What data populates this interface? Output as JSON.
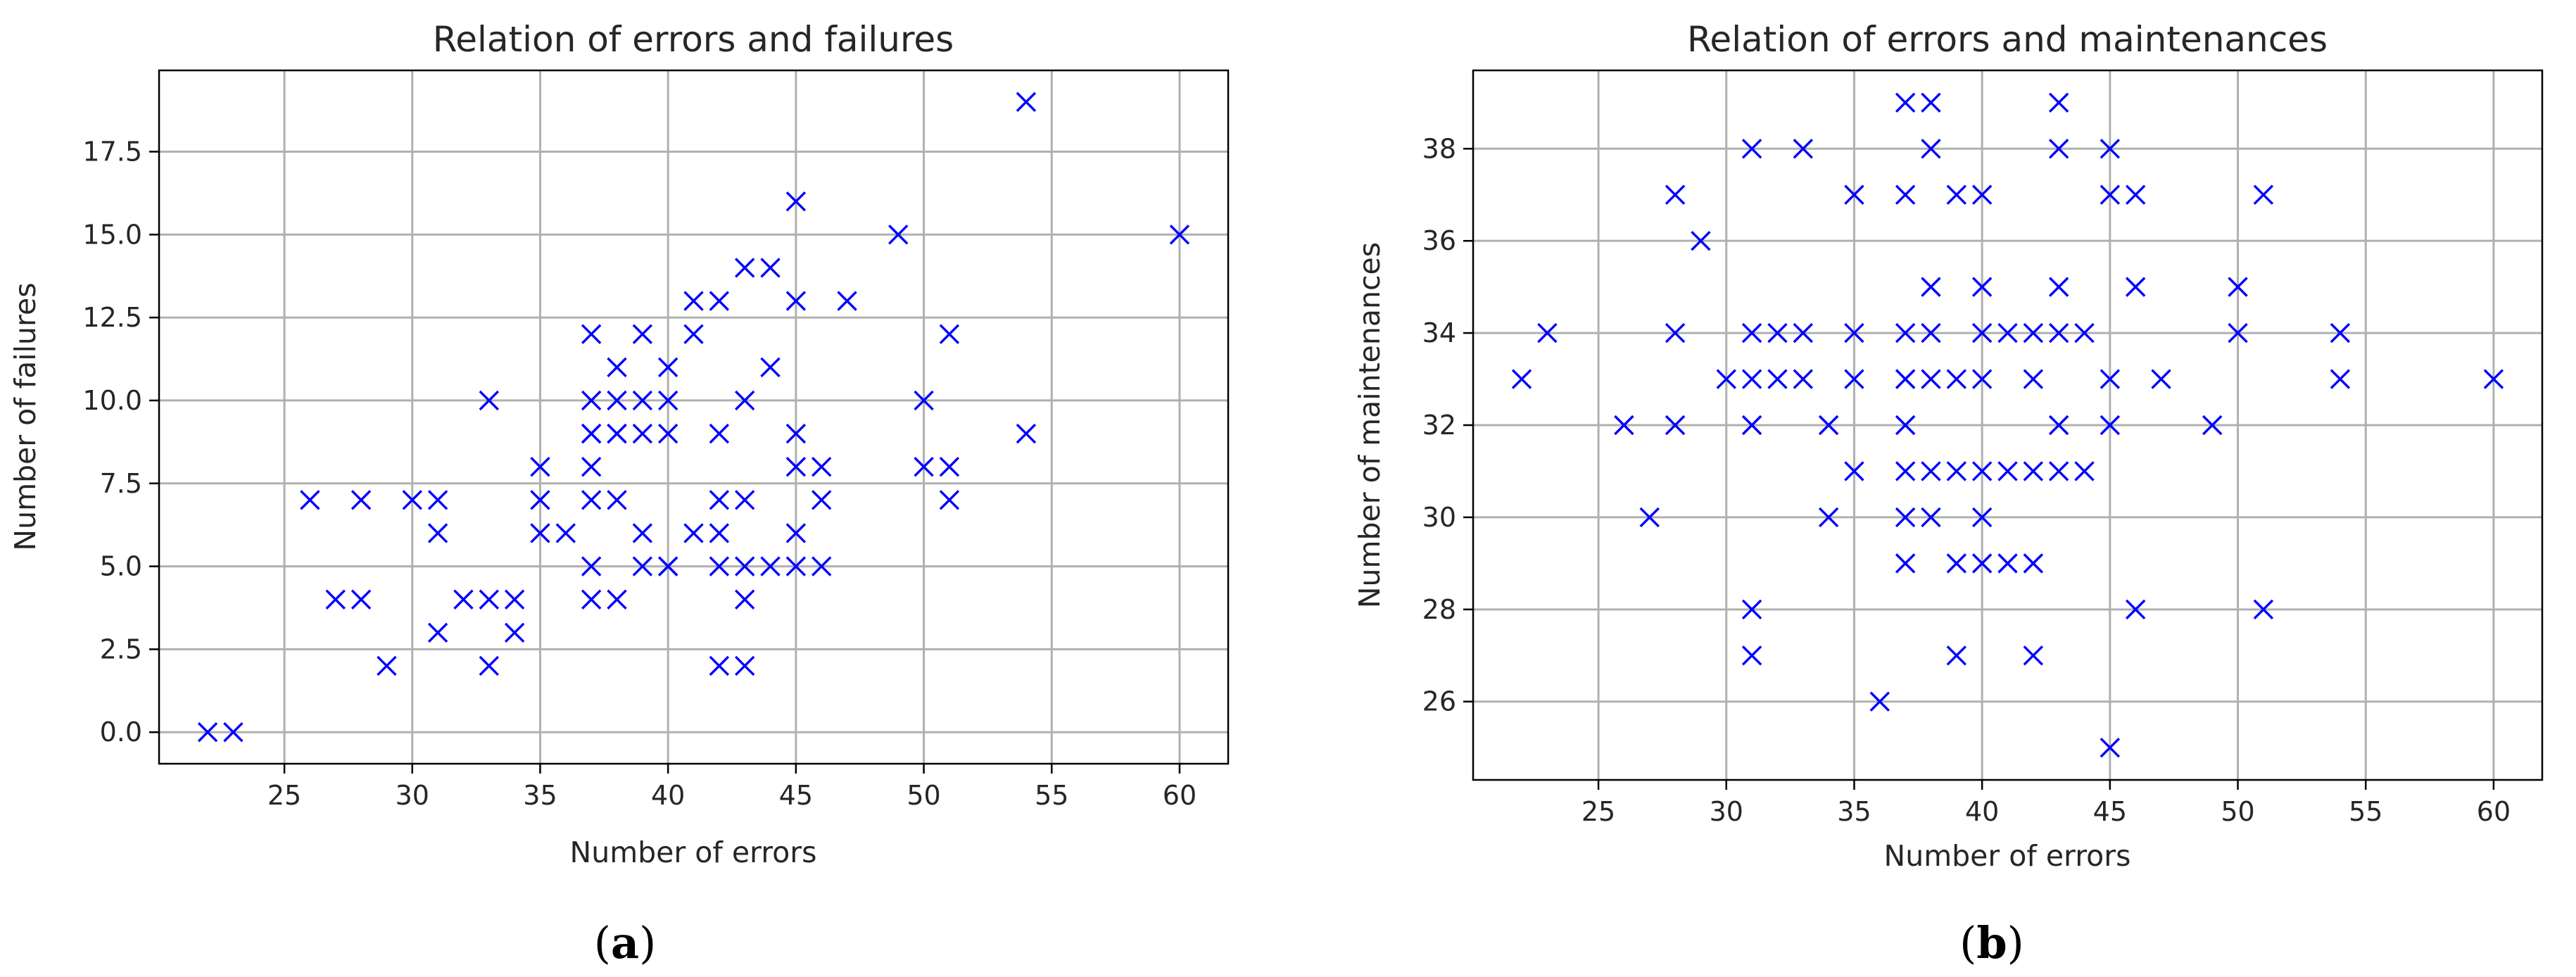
{
  "colors": {
    "marker": "#0000ff",
    "grid": "#b0b0b0",
    "frame": "#000000",
    "background": "#ffffff"
  },
  "chart_data": [
    {
      "type": "scatter",
      "caption": "(a)",
      "caption_letter": "a",
      "title": "Relation of errors and failures",
      "xlabel": "Number of errors",
      "ylabel": "Number of failures",
      "xlim": [
        20.1,
        61.9
      ],
      "ylim": [
        -0.95,
        19.95
      ],
      "xticks": [
        25,
        30,
        35,
        40,
        45,
        50,
        55,
        60
      ],
      "xtick_labels": [
        "25",
        "30",
        "35",
        "40",
        "45",
        "50",
        "55",
        "60"
      ],
      "yticks": [
        0,
        2.5,
        5,
        7.5,
        10,
        12.5,
        15,
        17.5
      ],
      "ytick_labels": [
        "0.0",
        "2.5",
        "5.0",
        "7.5",
        "10.0",
        "12.5",
        "15.0",
        "17.5"
      ],
      "grid": true,
      "marker": "x",
      "series": [
        {
          "x": [
            22,
            23,
            26,
            27,
            28,
            28,
            29,
            30,
            31,
            31,
            31,
            32,
            33,
            33,
            33,
            34,
            34,
            35,
            35,
            35,
            36,
            37,
            37,
            37,
            37,
            37,
            37,
            37,
            37,
            38,
            38,
            38,
            38,
            38,
            38,
            39,
            39,
            39,
            39,
            39,
            40,
            40,
            40,
            40,
            40,
            41,
            41,
            41,
            42,
            42,
            42,
            42,
            42,
            42,
            43,
            43,
            43,
            43,
            43,
            43,
            44,
            44,
            44,
            45,
            45,
            45,
            45,
            45,
            45,
            46,
            46,
            46,
            47,
            49,
            50,
            50,
            51,
            51,
            51,
            54,
            54,
            60
          ],
          "y": [
            0,
            0,
            7,
            4,
            7,
            4,
            2,
            7,
            7,
            6,
            3,
            4,
            10,
            4,
            2,
            4,
            3,
            8,
            7,
            6,
            6,
            12,
            10,
            9,
            8,
            7,
            5,
            4,
            9,
            11,
            10,
            9,
            7,
            4,
            9,
            12,
            10,
            9,
            6,
            5,
            11,
            10,
            9,
            5,
            5,
            13,
            12,
            6,
            13,
            9,
            7,
            6,
            5,
            2,
            14,
            10,
            7,
            5,
            4,
            2,
            14,
            11,
            5,
            16,
            13,
            9,
            8,
            6,
            5,
            8,
            7,
            5,
            13,
            15,
            10,
            8,
            12,
            8,
            7,
            19,
            9,
            15
          ]
        }
      ]
    },
    {
      "type": "scatter",
      "caption": "(b)",
      "caption_letter": "b",
      "title": "Relation of errors and maintenances",
      "xlabel": "Number of errors",
      "ylabel": "Number of maintenances",
      "xlim": [
        20.1,
        61.9
      ],
      "ylim": [
        24.3,
        39.7
      ],
      "xticks": [
        25,
        30,
        35,
        40,
        45,
        50,
        55,
        60
      ],
      "xtick_labels": [
        "25",
        "30",
        "35",
        "40",
        "45",
        "50",
        "55",
        "60"
      ],
      "yticks": [
        26,
        28,
        30,
        32,
        34,
        36,
        38
      ],
      "ytick_labels": [
        "26",
        "28",
        "30",
        "32",
        "34",
        "36",
        "38"
      ],
      "grid": true,
      "marker": "x",
      "series": [
        {
          "x": [
            22,
            23,
            26,
            27,
            28,
            28,
            28,
            29,
            30,
            31,
            31,
            31,
            31,
            31,
            31,
            32,
            32,
            33,
            33,
            33,
            34,
            34,
            35,
            35,
            35,
            35,
            36,
            37,
            37,
            37,
            37,
            37,
            37,
            37,
            37,
            37,
            38,
            38,
            38,
            38,
            38,
            38,
            38,
            39,
            39,
            39,
            39,
            39,
            40,
            40,
            40,
            40,
            40,
            40,
            40,
            41,
            41,
            41,
            42,
            42,
            42,
            42,
            42,
            43,
            43,
            43,
            43,
            43,
            43,
            44,
            44,
            45,
            45,
            45,
            45,
            45,
            46,
            46,
            46,
            47,
            49,
            50,
            50,
            51,
            51,
            54,
            54,
            60
          ],
          "y": [
            33,
            34,
            32,
            30,
            37,
            34,
            32,
            36,
            33,
            38,
            34,
            33,
            32,
            28,
            27,
            34,
            33,
            38,
            34,
            33,
            32,
            30,
            37,
            34,
            33,
            31,
            26,
            39,
            37,
            34,
            33,
            32,
            31,
            30,
            29,
            33,
            39,
            38,
            35,
            34,
            33,
            31,
            30,
            37,
            33,
            31,
            29,
            27,
            37,
            35,
            34,
            33,
            31,
            30,
            29,
            34,
            31,
            29,
            34,
            33,
            31,
            29,
            27,
            39,
            38,
            35,
            34,
            32,
            31,
            34,
            31,
            38,
            37,
            33,
            32,
            25,
            37,
            35,
            28,
            33,
            32,
            35,
            34,
            37,
            28,
            34,
            33,
            33
          ]
        }
      ]
    }
  ]
}
